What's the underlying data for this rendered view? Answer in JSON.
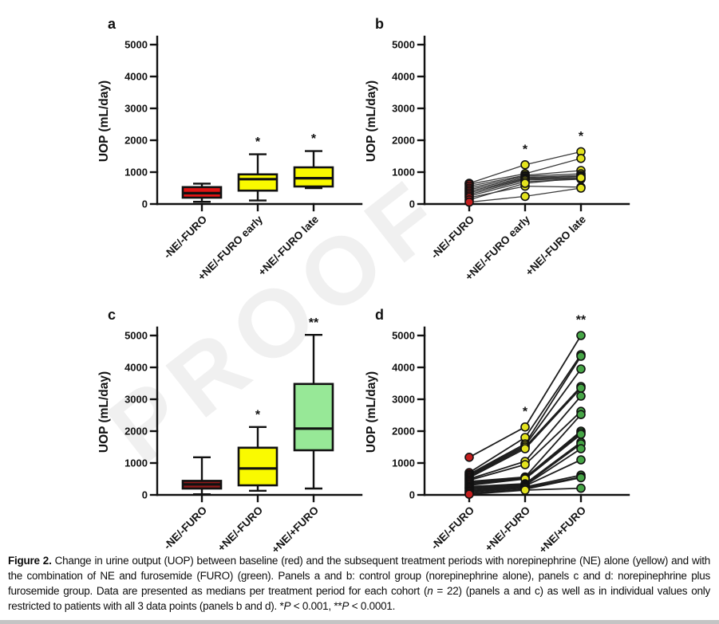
{
  "figure_title": "Figure 2.",
  "watermark": {
    "text": "PROOF"
  },
  "chart_data": [
    {
      "id": "a",
      "letter": "a",
      "type": "box",
      "title": "",
      "ylabel": "UOP (mL/day)",
      "ylim": [
        0,
        5500
      ],
      "yticks": [
        0,
        1000,
        2000,
        3000,
        4000,
        5000
      ],
      "grid": false,
      "categories": [
        "-NE/-FURO",
        "+NE/-FURO early",
        "+NE/-FURO late"
      ],
      "series": [
        {
          "label": "-NE/-FURO",
          "color": "#E01414",
          "min": 70,
          "q1": 200,
          "median": 340,
          "q3": 530,
          "max": 640,
          "sig": ""
        },
        {
          "label": "+NE/-FURO early",
          "color": "#FAFA00",
          "min": 110,
          "q1": 420,
          "median": 780,
          "q3": 930,
          "max": 1560,
          "sig": "*"
        },
        {
          "label": "+NE/-FURO late",
          "color": "#FAFA00",
          "min": 500,
          "q1": 550,
          "median": 810,
          "q3": 1150,
          "max": 1660,
          "sig": "*"
        }
      ]
    },
    {
      "id": "b",
      "letter": "b",
      "type": "paired",
      "title": "",
      "ylabel": "UOP (mL/day)",
      "ylim": [
        0,
        5500
      ],
      "yticks": [
        0,
        1000,
        2000,
        3000,
        4000,
        5000
      ],
      "grid": false,
      "categories": [
        "-NE/-FURO",
        "+NE/-FURO early",
        "+NE/-FURO late"
      ],
      "colors": [
        "#C41E1E",
        "#E3E31E",
        "#E3E31E"
      ],
      "sig": [
        "",
        "*",
        "*"
      ],
      "subjects": [
        [
          650,
          1230,
          1640
        ],
        [
          620,
          950,
          1430
        ],
        [
          560,
          900,
          1050
        ],
        [
          500,
          870,
          950
        ],
        [
          450,
          830,
          900
        ],
        [
          400,
          800,
          870
        ],
        [
          350,
          780,
          830
        ],
        [
          300,
          750,
          800
        ],
        [
          250,
          700,
          780
        ],
        [
          200,
          560,
          530
        ],
        [
          130,
          650,
          820
        ],
        [
          60,
          240,
          500
        ]
      ]
    },
    {
      "id": "c",
      "letter": "c",
      "type": "box",
      "title": "",
      "ylabel": "UOP (mL/day)",
      "ylim": [
        0,
        5500
      ],
      "yticks": [
        0,
        1000,
        2000,
        3000,
        4000,
        5000
      ],
      "grid": false,
      "categories": [
        "-NE/-FURO",
        "+NE/-FURO",
        "+NE/+FURO"
      ],
      "series": [
        {
          "label": "-NE/-FURO",
          "color": "#8F1A1A",
          "min": 20,
          "q1": 200,
          "median": 330,
          "q3": 440,
          "max": 1180,
          "sig": ""
        },
        {
          "label": "+NE/-FURO",
          "color": "#FAFA00",
          "min": 130,
          "q1": 300,
          "median": 830,
          "q3": 1480,
          "max": 2130,
          "sig": "*"
        },
        {
          "label": "+NE/+FURO",
          "color": "#97E897",
          "min": 200,
          "q1": 1400,
          "median": 2080,
          "q3": 3480,
          "max": 5020,
          "sig": "**"
        }
      ]
    },
    {
      "id": "d",
      "letter": "d",
      "type": "paired",
      "title": "",
      "ylabel": "UOP (mL/day)",
      "ylim": [
        0,
        5500
      ],
      "yticks": [
        0,
        1000,
        2000,
        3000,
        4000,
        5000
      ],
      "grid": false,
      "categories": [
        "-NE/-FURO",
        "+NE/-FURO",
        "+NE/+FURO"
      ],
      "colors": [
        "#C41E1E",
        "#E3E31E",
        "#46A546"
      ],
      "sig": [
        "",
        "*",
        "**"
      ],
      "subjects": [
        [
          1180,
          2130,
          5000
        ],
        [
          700,
          1800,
          4400
        ],
        [
          650,
          1600,
          4350
        ],
        [
          620,
          1550,
          3950
        ],
        [
          580,
          1500,
          3400
        ],
        [
          540,
          1450,
          3350
        ],
        [
          500,
          1050,
          3100
        ],
        [
          460,
          950,
          2620
        ],
        [
          420,
          560,
          2520
        ],
        [
          380,
          540,
          2000
        ],
        [
          340,
          520,
          1950
        ],
        [
          300,
          500,
          1900
        ],
        [
          260,
          350,
          1650
        ],
        [
          230,
          320,
          1600
        ],
        [
          200,
          300,
          1450
        ],
        [
          160,
          280,
          1100
        ],
        [
          120,
          250,
          620
        ],
        [
          90,
          220,
          560
        ],
        [
          50,
          180,
          540
        ],
        [
          20,
          150,
          210
        ]
      ]
    }
  ],
  "caption": {
    "segments": [
      {
        "text": "Figure 2.",
        "bold": true
      },
      {
        "text": "  Change in urine output (UOP) between baseline (red) and the subsequent treatment periods with norepinephrine (NE) alone (yellow) and with the combination of NE and furosemide (FURO) (green). Panels a and b: control group (norepinephrine alone), panels c and d: norepinephrine plus furosemide group. Data are presented as medians per treatment period for each cohort ("
      },
      {
        "text": "n",
        "italic": true
      },
      {
        "text": " = 22) (panels a and c) as well as in individual values only restricted to patients with all 3 data points (panels b and d). *"
      },
      {
        "text": "P",
        "italic": true
      },
      {
        "text": " < 0.001, **"
      },
      {
        "text": "P",
        "italic": true
      },
      {
        "text": " < 0.0001."
      }
    ]
  }
}
